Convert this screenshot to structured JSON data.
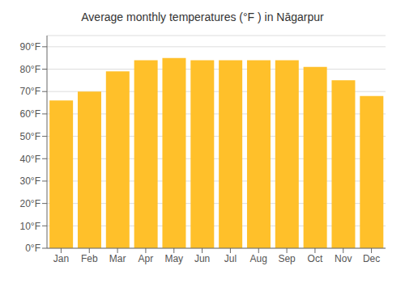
{
  "chart_data": {
    "type": "bar",
    "title": "Average monthly temperatures (°F ) in Nāgarpur",
    "categories": [
      "Jan",
      "Feb",
      "Mar",
      "Apr",
      "May",
      "Jun",
      "Jul",
      "Aug",
      "Sep",
      "Oct",
      "Nov",
      "Dec"
    ],
    "values": [
      66,
      70,
      79,
      84,
      85,
      84,
      84,
      84,
      84,
      81,
      75,
      68
    ],
    "color": "#FFC02A",
    "ylim": [
      0,
      95
    ],
    "yticks": [
      {
        "value": 0,
        "label": "0°F"
      },
      {
        "value": 10,
        "label": "10°F"
      },
      {
        "value": 20,
        "label": "20°F"
      },
      {
        "value": 30,
        "label": "30°F"
      },
      {
        "value": 40,
        "label": "40°F"
      },
      {
        "value": 50,
        "label": "50°F"
      },
      {
        "value": 60,
        "label": "60°F"
      },
      {
        "value": 70,
        "label": "70°F"
      },
      {
        "value": 80,
        "label": "80°F"
      },
      {
        "value": 90,
        "label": "90°F"
      }
    ],
    "grid": true
  }
}
